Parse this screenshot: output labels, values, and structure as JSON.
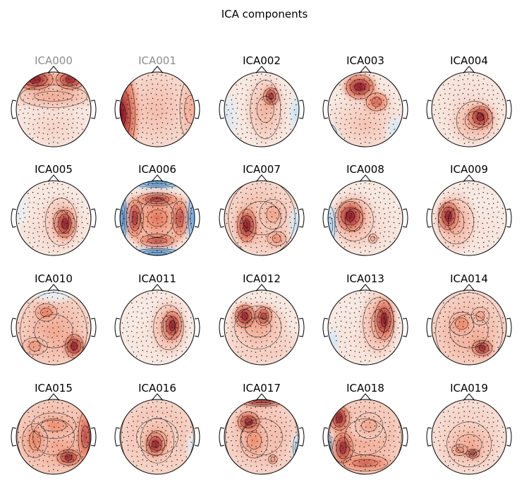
{
  "figure": {
    "title": "ICA components"
  },
  "components": [
    {
      "label": "ICA000",
      "excluded": true,
      "blobs": [
        [
          -0.5,
          -0.8,
          0.55,
          0.32,
          1.0
        ],
        [
          0.45,
          -0.8,
          0.45,
          0.3,
          0.95
        ],
        [
          0,
          -0.35,
          1.2,
          0.35,
          0.35
        ],
        [
          0,
          0.5,
          1.0,
          0.7,
          0.15
        ]
      ]
    },
    {
      "label": "ICA001",
      "excluded": true,
      "blobs": [
        [
          -1.0,
          0.15,
          0.5,
          1.3,
          1.0
        ],
        [
          0,
          0,
          1.3,
          1.3,
          0.25
        ],
        [
          0.9,
          0,
          0.4,
          1.0,
          0.35
        ]
      ]
    },
    {
      "label": "ICA002",
      "excluded": false,
      "blobs": [
        [
          0.25,
          -0.35,
          0.22,
          0.28,
          1.0
        ],
        [
          0.1,
          0.0,
          0.55,
          0.9,
          0.3
        ],
        [
          -0.9,
          0.2,
          0.25,
          0.6,
          -0.15
        ],
        [
          0.95,
          0.1,
          0.2,
          0.5,
          -0.25
        ]
      ]
    },
    {
      "label": "ICA003",
      "excluded": false,
      "blobs": [
        [
          -0.15,
          -0.6,
          0.45,
          0.35,
          1.0
        ],
        [
          0.3,
          -0.2,
          0.35,
          0.3,
          0.7
        ],
        [
          0,
          0.4,
          1.0,
          0.8,
          0.22
        ],
        [
          -0.95,
          0.7,
          0.25,
          0.35,
          -0.3
        ],
        [
          0.85,
          0.6,
          0.3,
          0.4,
          -0.2
        ]
      ]
    },
    {
      "label": "ICA004",
      "excluded": false,
      "blobs": [
        [
          0.3,
          0.2,
          0.35,
          0.35,
          1.0
        ],
        [
          0.15,
          0.3,
          0.65,
          0.6,
          0.35
        ],
        [
          0,
          0,
          1.2,
          1.2,
          0.12
        ]
      ]
    },
    {
      "label": "ICA005",
      "excluded": false,
      "blobs": [
        [
          0.3,
          0.15,
          0.3,
          0.45,
          1.0
        ],
        [
          0.2,
          0.1,
          0.55,
          0.75,
          0.3
        ],
        [
          0,
          0.3,
          1.2,
          1.0,
          0.12
        ],
        [
          -0.9,
          -0.2,
          0.2,
          0.4,
          -0.1
        ]
      ]
    },
    {
      "label": "ICA006",
      "excluded": false,
      "blobs": [
        [
          0,
          0,
          0.6,
          0.6,
          0.6
        ],
        [
          -0.6,
          0,
          0.25,
          0.6,
          0.9
        ],
        [
          0.6,
          0,
          0.25,
          0.6,
          0.8
        ],
        [
          0,
          -0.5,
          0.6,
          0.2,
          0.9
        ],
        [
          0,
          0.6,
          0.6,
          0.2,
          0.8
        ],
        [
          0,
          -0.95,
          0.8,
          0.15,
          -0.9
        ],
        [
          0,
          0.95,
          0.8,
          0.15,
          -0.9
        ],
        [
          -0.95,
          0,
          0.15,
          0.8,
          -0.9
        ],
        [
          0.95,
          0,
          0.15,
          0.8,
          -0.8
        ]
      ]
    },
    {
      "label": "ICA007",
      "excluded": false,
      "blobs": [
        [
          -0.4,
          0.2,
          0.3,
          0.5,
          1.0
        ],
        [
          0.3,
          -0.1,
          0.45,
          0.5,
          0.4
        ],
        [
          0.4,
          0.55,
          0.3,
          0.25,
          0.55
        ],
        [
          0,
          0,
          1.2,
          1.2,
          0.3
        ],
        [
          0.95,
          0.2,
          0.2,
          0.5,
          -0.25
        ]
      ]
    },
    {
      "label": "ICA008",
      "excluded": false,
      "blobs": [
        [
          -0.4,
          -0.05,
          0.4,
          0.45,
          1.0
        ],
        [
          -0.3,
          0.05,
          0.6,
          0.75,
          0.35
        ],
        [
          0.2,
          0.55,
          0.15,
          0.15,
          0.5
        ],
        [
          -0.95,
          0.2,
          0.18,
          0.6,
          -0.45
        ],
        [
          0,
          0.3,
          1.2,
          1.0,
          0.12
        ]
      ]
    },
    {
      "label": "ICA009",
      "excluded": false,
      "blobs": [
        [
          -0.55,
          -0.05,
          0.3,
          0.45,
          1.0
        ],
        [
          -0.35,
          0.1,
          0.55,
          0.8,
          0.35
        ],
        [
          0.3,
          0.3,
          1.0,
          1.0,
          0.08
        ]
      ]
    },
    {
      "label": "ICA010",
      "excluded": false,
      "blobs": [
        [
          0.55,
          0.5,
          0.3,
          0.35,
          1.0
        ],
        [
          -0.2,
          -0.4,
          0.35,
          0.3,
          0.6
        ],
        [
          -0.5,
          0.5,
          0.4,
          0.3,
          0.5
        ],
        [
          0,
          0.1,
          1.2,
          1.2,
          0.35
        ],
        [
          0,
          -0.9,
          0.6,
          0.2,
          -0.1
        ]
      ]
    },
    {
      "label": "ICA011",
      "excluded": false,
      "blobs": [
        [
          0.4,
          -0.05,
          0.28,
          0.45,
          1.0
        ],
        [
          0.3,
          0,
          0.5,
          0.75,
          0.35
        ],
        [
          0,
          0.3,
          1.2,
          1.0,
          0.08
        ]
      ]
    },
    {
      "label": "ICA012",
      "excluded": false,
      "blobs": [
        [
          -0.45,
          -0.3,
          0.3,
          0.35,
          1.0
        ],
        [
          0.05,
          -0.3,
          0.25,
          0.3,
          0.9
        ],
        [
          -0.1,
          0,
          0.8,
          0.7,
          0.35
        ],
        [
          0,
          0.5,
          1.1,
          0.6,
          0.25
        ]
      ]
    },
    {
      "label": "ICA013",
      "excluded": false,
      "blobs": [
        [
          0.5,
          -0.2,
          0.3,
          0.6,
          1.0
        ],
        [
          0.35,
          -0.1,
          0.5,
          0.9,
          0.35
        ],
        [
          -0.9,
          0.4,
          0.2,
          0.4,
          -0.2
        ],
        [
          0,
          0.3,
          1.2,
          1.0,
          0.1
        ]
      ]
    },
    {
      "label": "ICA014",
      "excluded": false,
      "blobs": [
        [
          0.35,
          0.55,
          0.3,
          0.25,
          1.0
        ],
        [
          -0.2,
          -0.1,
          0.4,
          0.4,
          0.55
        ],
        [
          0.3,
          -0.3,
          0.3,
          0.3,
          0.45
        ],
        [
          0,
          0.1,
          1.2,
          1.2,
          0.35
        ]
      ]
    },
    {
      "label": "ICA015",
      "excluded": false,
      "blobs": [
        [
          0.4,
          0.55,
          0.35,
          0.25,
          1.0
        ],
        [
          0.85,
          0,
          0.25,
          0.8,
          0.8
        ],
        [
          -0.5,
          0.1,
          0.4,
          0.6,
          0.55
        ],
        [
          0,
          -0.3,
          0.8,
          0.4,
          0.5
        ],
        [
          0,
          0,
          1.3,
          1.3,
          0.4
        ]
      ]
    },
    {
      "label": "ICA016",
      "excluded": false,
      "blobs": [
        [
          -0.05,
          0.2,
          0.3,
          0.35,
          1.0
        ],
        [
          0,
          0.1,
          0.6,
          0.7,
          0.4
        ],
        [
          0,
          0,
          1.3,
          1.3,
          0.3
        ],
        [
          0.95,
          0.3,
          0.15,
          0.4,
          -0.15
        ]
      ]
    },
    {
      "label": "ICA017",
      "excluded": false,
      "blobs": [
        [
          0,
          -0.95,
          0.7,
          0.15,
          1.0
        ],
        [
          -0.35,
          -0.4,
          0.35,
          0.3,
          0.95
        ],
        [
          -0.2,
          0.1,
          0.45,
          0.6,
          0.5
        ],
        [
          0.3,
          0.6,
          0.15,
          0.15,
          0.6
        ],
        [
          0,
          0,
          1.3,
          1.3,
          0.3
        ],
        [
          0.95,
          0.3,
          0.15,
          0.4,
          -0.3
        ]
      ]
    },
    {
      "label": "ICA018",
      "excluded": false,
      "blobs": [
        [
          -0.7,
          -0.5,
          0.3,
          0.4,
          1.0
        ],
        [
          -0.6,
          0.3,
          0.3,
          0.5,
          0.95
        ],
        [
          0,
          0.7,
          0.8,
          0.25,
          0.7
        ],
        [
          0.1,
          -0.3,
          0.5,
          0.4,
          0.4
        ],
        [
          0,
          0,
          1.3,
          1.3,
          0.35
        ],
        [
          -1.0,
          0.25,
          0.12,
          0.4,
          -0.5
        ]
      ]
    },
    {
      "label": "ICA019",
      "excluded": false,
      "blobs": [
        [
          0.1,
          0.45,
          0.2,
          0.15,
          1.0
        ],
        [
          -0.25,
          0.35,
          0.25,
          0.2,
          0.6
        ],
        [
          0,
          0.2,
          0.8,
          0.7,
          0.35
        ],
        [
          0,
          0,
          1.3,
          1.3,
          0.2
        ]
      ]
    }
  ]
}
